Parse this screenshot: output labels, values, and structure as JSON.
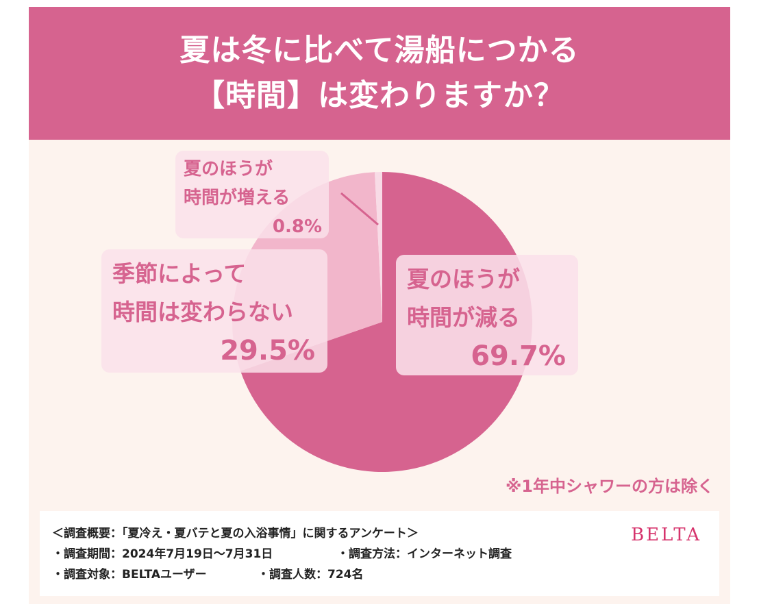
{
  "colors": {
    "accent": "#d6638f",
    "panel_background": "#fdf3ee",
    "brand": "#d6336c"
  },
  "title": {
    "line1": "夏は冬に比べて湯船につかる",
    "line2": "【時間】は変わりますか？"
  },
  "chart_data": {
    "type": "pie",
    "slices": [
      {
        "label": "夏のほうが時間が減る",
        "value": 69.7,
        "value_label": "69.7%",
        "color": "#d6638f"
      },
      {
        "label": "季節によって時間は変わらない",
        "value": 29.5,
        "value_label": "29.5%",
        "color": "#f2b6cb"
      },
      {
        "label": "夏のほうが時間が増える",
        "value": 0.8,
        "value_label": "0.8%",
        "color": "#f8dbe6"
      }
    ],
    "start": "12 o'clock",
    "direction": "clockwise"
  },
  "labels": {
    "decrease": {
      "line1": "夏のほうが",
      "line2": "時間が減る",
      "value": "69.7%"
    },
    "same": {
      "line1": "季節によって",
      "line2": "時間は変わらない",
      "value": "29.5%"
    },
    "increase": {
      "line1": "夏のほうが",
      "line2": "時間が増える",
      "value": "0.8%"
    }
  },
  "note": "※1年中シャワーの方は除く",
  "survey": {
    "line1": "＜調査概要：「夏冷え・夏バテと夏の入浴事情」に関するアンケート＞",
    "period": "・調査期間：2024年7月19日〜7月31日",
    "method": "・調査方法：インターネット調査",
    "target": "・調査対象：BELTAユーザー",
    "count": "・調査人数：724名"
  },
  "brand": "BELTA"
}
